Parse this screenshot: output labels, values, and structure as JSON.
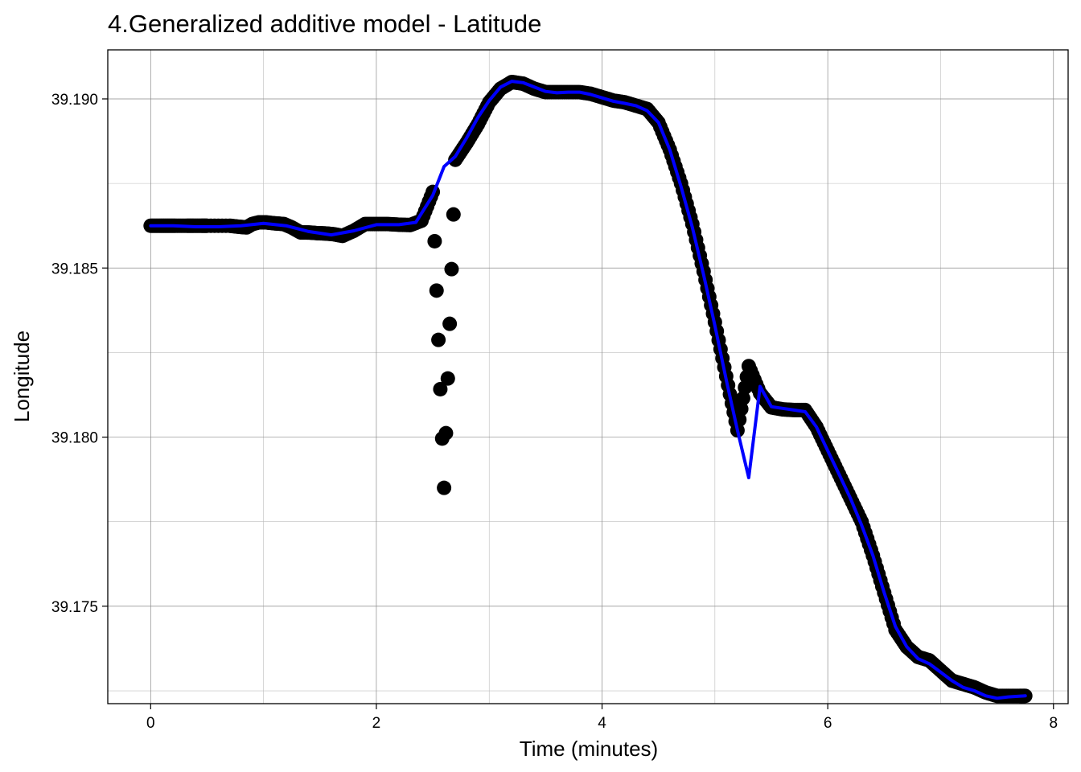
{
  "chart_data": {
    "type": "scatter",
    "title": "4.Generalized additive model - Latitude",
    "xlabel": "Time (minutes)",
    "ylabel": "Longitude",
    "xlim": [
      -0.38,
      8.13
    ],
    "ylim": [
      39.17212,
      39.19145
    ],
    "x_ticks": [
      {
        "value": 0,
        "label": "0"
      },
      {
        "value": 2,
        "label": "2"
      },
      {
        "value": 4,
        "label": "4"
      },
      {
        "value": 6,
        "label": "6"
      },
      {
        "value": 8,
        "label": "8"
      }
    ],
    "y_ticks": [
      {
        "value": 39.175,
        "label": "39.175"
      },
      {
        "value": 39.18,
        "label": "39.180"
      },
      {
        "value": 39.185,
        "label": "39.185"
      },
      {
        "value": 39.19,
        "label": "39.190"
      }
    ],
    "x_minor": [
      1,
      3,
      5,
      7
    ],
    "y_minor": [
      39.1725,
      39.1775,
      39.1825,
      39.1875
    ],
    "grid": true,
    "legend": "none",
    "colors": {
      "points": "#000000",
      "smooth": "#0000ff",
      "grid": "#bdbdbd",
      "panel_border": "#000000"
    },
    "series": [
      {
        "kind": "points",
        "x": [
          0.0,
          0.08,
          0.15,
          0.22,
          0.32,
          0.38,
          0.45,
          0.5,
          0.7,
          0.78,
          0.85,
          0.9,
          0.96,
          1.02,
          1.1,
          1.18,
          1.25,
          1.33,
          1.4,
          1.48,
          1.55,
          1.62,
          1.7,
          1.8,
          1.9,
          2.0,
          2.1,
          2.2,
          2.3,
          2.4,
          2.5,
          2.6,
          2.7,
          2.8,
          2.9,
          3.0,
          3.1,
          3.2,
          3.3,
          3.4,
          3.5,
          3.6,
          3.7,
          3.8,
          3.9,
          4.0,
          4.1,
          4.2,
          4.3,
          4.4,
          4.5,
          4.6,
          4.7,
          4.8,
          4.9,
          5.0,
          5.1,
          5.2,
          5.3,
          5.4,
          5.5,
          5.6,
          5.7,
          5.8,
          5.9,
          6.0,
          6.1,
          6.2,
          6.3,
          6.4,
          6.5,
          6.6,
          6.7,
          6.8,
          6.9,
          7.0,
          7.1,
          7.2,
          7.3,
          7.4,
          7.5,
          7.6,
          7.7,
          7.75
        ],
        "y": [
          39.18625,
          39.18625,
          39.18625,
          39.18625,
          39.18625,
          39.18625,
          39.18625,
          39.18625,
          39.18625,
          39.18622,
          39.1862,
          39.1863,
          39.18635,
          39.18635,
          39.18632,
          39.1863,
          39.1862,
          39.18605,
          39.18605,
          39.18603,
          39.18602,
          39.186,
          39.18595,
          39.1861,
          39.1863,
          39.1863,
          39.1863,
          39.18628,
          39.18627,
          39.1864,
          39.18725,
          39.1785,
          39.1882,
          39.1887,
          39.18925,
          39.1899,
          39.1903,
          39.1905,
          39.19045,
          39.1903,
          39.1902,
          39.1902,
          39.1902,
          39.1902,
          39.19015,
          39.19005,
          39.18995,
          39.1899,
          39.1898,
          39.1897,
          39.1893,
          39.1885,
          39.1875,
          39.1863,
          39.1849,
          39.1834,
          39.1818,
          39.1802,
          39.1821,
          39.1813,
          39.18088,
          39.18082,
          39.1808,
          39.1808,
          39.1803,
          39.1796,
          39.1789,
          39.1782,
          39.1775,
          39.1765,
          39.1754,
          39.1743,
          39.1738,
          39.1735,
          39.1734,
          39.1731,
          39.1728,
          39.1727,
          39.1726,
          39.17245,
          39.17235,
          39.17235,
          39.17235,
          39.17235
        ]
      },
      {
        "kind": "smooth",
        "x": [
          0.0,
          0.2,
          0.4,
          0.6,
          0.8,
          1.0,
          1.2,
          1.4,
          1.6,
          1.8,
          2.0,
          2.2,
          2.35,
          2.5,
          2.6,
          2.7,
          2.8,
          2.9,
          3.0,
          3.1,
          3.2,
          3.3,
          3.4,
          3.5,
          3.6,
          3.7,
          3.8,
          3.9,
          4.0,
          4.1,
          4.2,
          4.3,
          4.4,
          4.5,
          4.6,
          4.7,
          4.8,
          4.9,
          5.0,
          5.1,
          5.2,
          5.3,
          5.4,
          5.5,
          5.6,
          5.7,
          5.8,
          5.9,
          6.0,
          6.1,
          6.2,
          6.3,
          6.4,
          6.5,
          6.6,
          6.7,
          6.8,
          6.9,
          7.0,
          7.1,
          7.2,
          7.3,
          7.4,
          7.5,
          7.6,
          7.75
        ],
        "y": [
          39.18625,
          39.18625,
          39.18622,
          39.18622,
          39.18625,
          39.18632,
          39.18625,
          39.18608,
          39.18598,
          39.1861,
          39.18628,
          39.18628,
          39.18635,
          39.18715,
          39.188,
          39.1883,
          39.18885,
          39.18945,
          39.18995,
          39.19035,
          39.19052,
          39.19048,
          39.19035,
          39.19022,
          39.19018,
          39.1902,
          39.1902,
          39.19013,
          39.19003,
          39.18993,
          39.18987,
          39.1898,
          39.18965,
          39.1893,
          39.1885,
          39.1874,
          39.1862,
          39.1848,
          39.1833,
          39.1817,
          39.1802,
          39.1788,
          39.1815,
          39.1809,
          39.18085,
          39.1808,
          39.18075,
          39.1803,
          39.1796,
          39.1789,
          39.1782,
          39.1774,
          39.1765,
          39.1754,
          39.1744,
          39.1738,
          39.17345,
          39.1733,
          39.17305,
          39.1728,
          39.1726,
          39.1725,
          39.17235,
          39.17228,
          39.17232,
          39.17235
        ]
      }
    ]
  }
}
